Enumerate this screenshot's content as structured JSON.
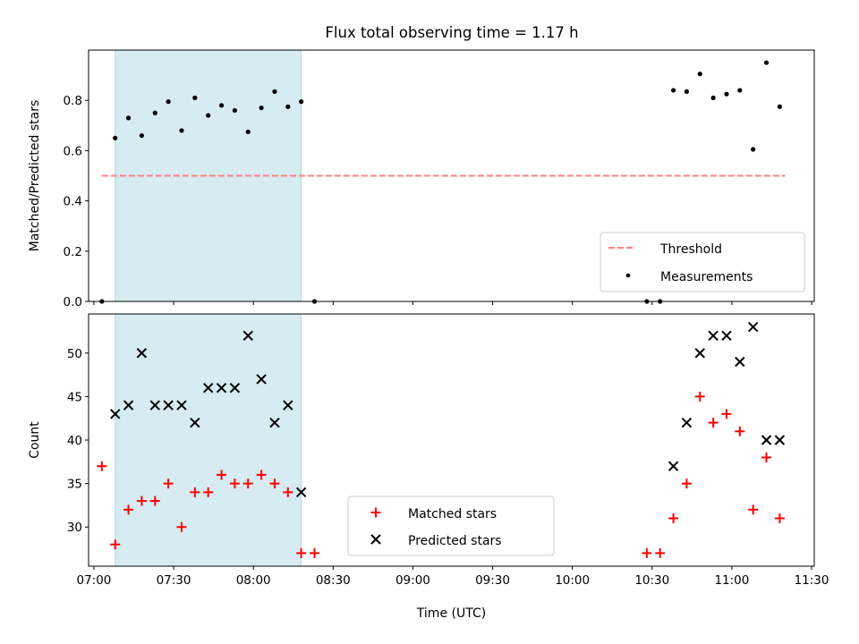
{
  "title": "Flux total observing time = 1.17 h",
  "xlabel": "Time (UTC)",
  "x_tick_labels": [
    "07:00",
    "07:30",
    "08:00",
    "08:30",
    "09:00",
    "09:30",
    "10:00",
    "10:30",
    "11:00",
    "11:30"
  ],
  "colors": {
    "shade": "#add8e6",
    "threshold": "#ff7f7f",
    "matched": "#ff0000",
    "predicted": "#000000",
    "measurements": "#000000"
  },
  "chart_data": [
    {
      "type": "scatter",
      "ylabel": "Matched/Predicted stars",
      "ylim": [
        0.0,
        1.0
      ],
      "yticks": [
        "0.0",
        "0.2",
        "0.4",
        "0.6",
        "0.8"
      ],
      "xlim": [
        "06:58",
        "11:31"
      ],
      "shaded_region": {
        "x": [
          "07:08",
          "08:18"
        ]
      },
      "threshold": {
        "name": "Threshold",
        "y": 0.5,
        "x": [
          "07:03",
          "11:20"
        ]
      },
      "legend": {
        "position": "lower right",
        "entries": [
          "Threshold",
          "Measurements"
        ]
      },
      "series": [
        {
          "name": "Measurements",
          "marker": "dot",
          "points": [
            [
              "07:03",
              0.0
            ],
            [
              "07:08",
              0.65
            ],
            [
              "07:13",
              0.73
            ],
            [
              "07:18",
              0.66
            ],
            [
              "07:23",
              0.75
            ],
            [
              "07:28",
              0.795
            ],
            [
              "07:33",
              0.68
            ],
            [
              "07:38",
              0.81
            ],
            [
              "07:43",
              0.74
            ],
            [
              "07:48",
              0.78
            ],
            [
              "07:53",
              0.76
            ],
            [
              "07:58",
              0.675
            ],
            [
              "08:03",
              0.77
            ],
            [
              "08:08",
              0.835
            ],
            [
              "08:13",
              0.775
            ],
            [
              "08:18",
              0.795
            ],
            [
              "08:23",
              0.0
            ],
            [
              "10:28",
              0.0
            ],
            [
              "10:33",
              0.0
            ],
            [
              "10:38",
              0.84
            ],
            [
              "10:43",
              0.835
            ],
            [
              "10:48",
              0.905
            ],
            [
              "10:53",
              0.81
            ],
            [
              "10:58",
              0.825
            ],
            [
              "11:03",
              0.84
            ],
            [
              "11:08",
              0.605
            ],
            [
              "11:13",
              0.95
            ],
            [
              "11:18",
              0.775
            ]
          ]
        }
      ]
    },
    {
      "type": "scatter",
      "ylabel": "Count",
      "ylim": [
        25.5,
        54.5
      ],
      "yticks": [
        "30",
        "35",
        "40",
        "45",
        "50"
      ],
      "xlim": [
        "06:58",
        "11:31"
      ],
      "shaded_region": {
        "x": [
          "07:08",
          "08:18"
        ]
      },
      "legend": {
        "position": "lower center",
        "entries": [
          "Matched stars",
          "Predicted stars"
        ]
      },
      "series": [
        {
          "name": "Matched stars",
          "marker": "plus",
          "points": [
            [
              "07:03",
              37
            ],
            [
              "07:08",
              28
            ],
            [
              "07:13",
              32
            ],
            [
              "07:18",
              33
            ],
            [
              "07:23",
              33
            ],
            [
              "07:28",
              35
            ],
            [
              "07:33",
              30
            ],
            [
              "07:38",
              34
            ],
            [
              "07:43",
              34
            ],
            [
              "07:48",
              36
            ],
            [
              "07:53",
              35
            ],
            [
              "07:58",
              35
            ],
            [
              "08:03",
              36
            ],
            [
              "08:08",
              35
            ],
            [
              "08:13",
              34
            ],
            [
              "08:18",
              27
            ],
            [
              "08:23",
              27
            ],
            [
              "10:28",
              27
            ],
            [
              "10:33",
              27
            ],
            [
              "10:38",
              31
            ],
            [
              "10:43",
              35
            ],
            [
              "10:48",
              45
            ],
            [
              "10:53",
              42
            ],
            [
              "10:58",
              43
            ],
            [
              "11:03",
              41
            ],
            [
              "11:08",
              32
            ],
            [
              "11:13",
              38
            ],
            [
              "11:18",
              31
            ]
          ]
        },
        {
          "name": "Predicted stars",
          "marker": "x",
          "points": [
            [
              "07:08",
              43
            ],
            [
              "07:13",
              44
            ],
            [
              "07:18",
              50
            ],
            [
              "07:23",
              44
            ],
            [
              "07:28",
              44
            ],
            [
              "07:33",
              44
            ],
            [
              "07:38",
              42
            ],
            [
              "07:43",
              46
            ],
            [
              "07:48",
              46
            ],
            [
              "07:53",
              46
            ],
            [
              "07:58",
              52
            ],
            [
              "08:03",
              47
            ],
            [
              "08:08",
              42
            ],
            [
              "08:13",
              44
            ],
            [
              "08:18",
              34
            ],
            [
              "10:38",
              37
            ],
            [
              "10:43",
              42
            ],
            [
              "10:48",
              50
            ],
            [
              "10:53",
              52
            ],
            [
              "10:58",
              52
            ],
            [
              "11:03",
              49
            ],
            [
              "11:08",
              53
            ],
            [
              "11:13",
              40
            ],
            [
              "11:18",
              40
            ]
          ]
        }
      ]
    }
  ]
}
